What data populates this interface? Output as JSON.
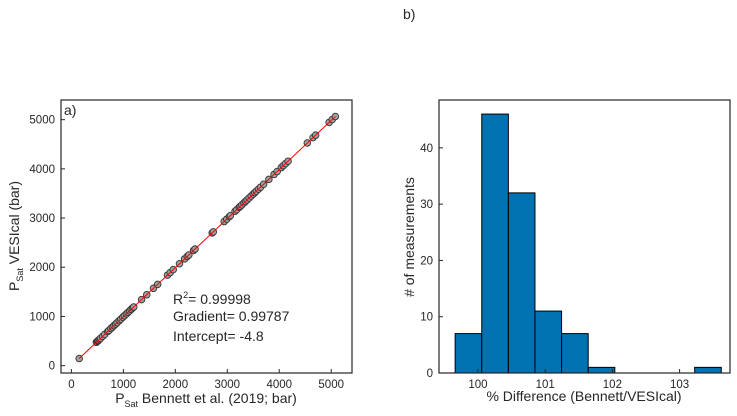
{
  "chart_data": [
    {
      "type": "scatter",
      "panel_label": "a)",
      "xlabel_main": "P",
      "xlabel_sub": "Sat",
      "xlabel_rest": " Bennett et al. (2019; bar)",
      "ylabel_main": "P",
      "ylabel_sub": "Sat",
      "ylabel_rest": " VESIcal (bar)",
      "xlim": [
        -200,
        5400
      ],
      "ylim": [
        -150,
        5400
      ],
      "xticks": [
        0,
        1000,
        2000,
        3000,
        4000,
        5000
      ],
      "yticks": [
        0,
        1000,
        2000,
        3000,
        4000,
        5000
      ],
      "grid": false,
      "marker_color": "#a0a0a0",
      "marker_edge": "#333333",
      "fit_color": "#ff0000",
      "fit": {
        "gradient": 0.99787,
        "intercept": -4.8,
        "x_range": [
          150,
          5080
        ]
      },
      "annotations": {
        "r2_label": "R",
        "r2_sup": "2",
        "r2_value": "= 0.99998",
        "gradient": "Gradient= 0.99787",
        "intercept": "Intercept= -4.8"
      },
      "x": [
        150,
        480,
        500,
        510,
        520,
        540,
        560,
        600,
        640,
        700,
        720,
        760,
        790,
        820,
        850,
        880,
        920,
        950,
        990,
        1020,
        1060,
        1090,
        1120,
        1150,
        1180,
        1200,
        1350,
        1450,
        1580,
        1660,
        1850,
        1900,
        1960,
        2080,
        2180,
        2230,
        2260,
        2350,
        2380,
        2710,
        2730,
        2940,
        2990,
        3040,
        3060,
        3150,
        3180,
        3230,
        3250,
        3280,
        3320,
        3350,
        3380,
        3420,
        3460,
        3500,
        3530,
        3560,
        3600,
        3640,
        3700,
        3800,
        3900,
        3960,
        4040,
        4080,
        4120,
        4170,
        4540,
        4650,
        4700,
        4960,
        5020,
        5080
      ],
      "y": [
        145,
        474,
        494,
        504,
        514,
        534,
        554,
        594,
        634,
        694,
        714,
        754,
        784,
        813,
        843,
        873,
        913,
        943,
        983,
        1013,
        1053,
        1083,
        1113,
        1143,
        1173,
        1193,
        1342,
        1442,
        1572,
        1652,
        1841,
        1891,
        1951,
        2071,
        2171,
        2220,
        2250,
        2340,
        2370,
        2699,
        2719,
        2929,
        2979,
        3029,
        3049,
        3139,
        3169,
        3218,
        3238,
        3268,
        3308,
        3338,
        3368,
        3408,
        3448,
        3488,
        3518,
        3548,
        3588,
        3627,
        3687,
        3787,
        3887,
        3947,
        4027,
        4067,
        4106,
        4156,
        4526,
        4635,
        4685,
        4945,
        5004,
        5064
      ]
    },
    {
      "type": "bar",
      "subtype": "histogram",
      "panel_label": "b)",
      "xlabel": "% Difference (Bennett/VESIcal)",
      "ylabel": "# of measurements",
      "xlim": [
        99.42,
        103.75
      ],
      "ylim": [
        0,
        48.5
      ],
      "xticks": [
        100,
        101,
        102,
        103
      ],
      "yticks": [
        0,
        10,
        20,
        30,
        40
      ],
      "grid": false,
      "bar_color": "#0072b2",
      "edge_color": "#000000",
      "bin_edges": [
        99.66,
        100.056,
        100.452,
        100.848,
        101.244,
        101.64,
        102.036,
        102.432,
        102.828,
        103.224,
        103.62
      ],
      "counts": [
        7,
        46,
        32,
        11,
        7,
        1,
        0,
        0,
        0,
        1
      ]
    }
  ]
}
